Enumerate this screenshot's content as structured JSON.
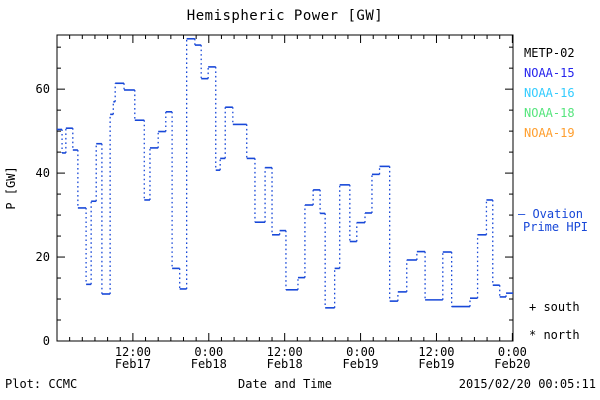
{
  "title": "Hemispheric Power [GW]",
  "footer": {
    "left": "Plot: CCMC",
    "center": "Date and Time",
    "right": "2015/02/20 00:05:11"
  },
  "side_legend": {
    "satellites": [
      {
        "label": "METP-02",
        "color": "#000000"
      },
      {
        "label": "NOAA-15",
        "color": "#2525ee"
      },
      {
        "label": "NOAA-16",
        "color": "#33ccff"
      },
      {
        "label": "NOAA-18",
        "color": "#55e57d"
      },
      {
        "label": "NOAA-19",
        "color": "#ff9f2e"
      }
    ],
    "ovation_line1": "— Ovation",
    "ovation_line2": "Prime HPI",
    "south_marker": "+ south",
    "north_marker": "* north"
  },
  "chart_data": {
    "type": "line",
    "subtype": "step-with-dotted-risers",
    "title": "Hemispheric Power [GW]",
    "xlabel": "Date and Time",
    "ylabel": "P [GW]",
    "line_color": "#1848d8",
    "x_epoch": "2015-02-17 00:00",
    "x_unit": "hours since Feb17 00:00",
    "xlim": [
      0,
      72.1
    ],
    "ylim": [
      0,
      72.9
    ],
    "y_major_ticks": [
      0,
      20,
      40,
      60
    ],
    "y_minor_step": 5,
    "x_minor_step": 2,
    "x_major_ticks": [
      {
        "t": 12,
        "time": "12:00",
        "date": "Feb17"
      },
      {
        "t": 24,
        "time": "0:00",
        "date": "Feb18"
      },
      {
        "t": 36,
        "time": "12:00",
        "date": "Feb18"
      },
      {
        "t": 48,
        "time": "0:00",
        "date": "Feb19"
      },
      {
        "t": 60,
        "time": "12:00",
        "date": "Feb19"
      },
      {
        "t": 72,
        "time": "0:00",
        "date": "Feb20"
      }
    ],
    "grid": false,
    "legend_position": "right-outside",
    "series": [
      {
        "name": "Ovation Prime HPI",
        "color": "#1848d8",
        "points_t_gw": [
          [
            0.0,
            50.4
          ],
          [
            0.8,
            44.8
          ],
          [
            1.4,
            50.7
          ],
          [
            2.5,
            45.5
          ],
          [
            3.3,
            31.7
          ],
          [
            4.6,
            13.5
          ],
          [
            5.4,
            33.3
          ],
          [
            6.2,
            47.0
          ],
          [
            7.1,
            11.2
          ],
          [
            8.4,
            54.0
          ],
          [
            8.9,
            57.0
          ],
          [
            9.2,
            61.4
          ],
          [
            10.6,
            59.8
          ],
          [
            12.3,
            52.6
          ],
          [
            13.8,
            33.6
          ],
          [
            14.7,
            46.0
          ],
          [
            16.0,
            49.9
          ],
          [
            17.2,
            54.6
          ],
          [
            18.2,
            17.3
          ],
          [
            19.4,
            12.4
          ],
          [
            20.5,
            72.0
          ],
          [
            21.8,
            70.5
          ],
          [
            22.8,
            62.5
          ],
          [
            23.9,
            65.3
          ],
          [
            25.1,
            40.7
          ],
          [
            25.8,
            43.5
          ],
          [
            26.6,
            55.7
          ],
          [
            27.8,
            51.6
          ],
          [
            30.0,
            43.5
          ],
          [
            31.3,
            28.3
          ],
          [
            32.9,
            41.3
          ],
          [
            34.0,
            25.3
          ],
          [
            35.2,
            26.3
          ],
          [
            36.2,
            12.2
          ],
          [
            38.1,
            15.1
          ],
          [
            39.2,
            32.4
          ],
          [
            40.5,
            36.0
          ],
          [
            41.6,
            30.4
          ],
          [
            42.4,
            7.9
          ],
          [
            43.9,
            17.3
          ],
          [
            44.7,
            37.2
          ],
          [
            46.3,
            23.7
          ],
          [
            47.4,
            28.2
          ],
          [
            48.7,
            30.5
          ],
          [
            49.8,
            39.7
          ],
          [
            51.0,
            41.6
          ],
          [
            52.6,
            9.5
          ],
          [
            53.9,
            11.7
          ],
          [
            55.3,
            19.3
          ],
          [
            56.9,
            21.3
          ],
          [
            58.2,
            9.8
          ],
          [
            61.0,
            21.2
          ],
          [
            62.4,
            8.2
          ],
          [
            65.3,
            10.2
          ],
          [
            66.5,
            25.3
          ],
          [
            67.9,
            33.6
          ],
          [
            68.9,
            13.3
          ],
          [
            70.0,
            10.5
          ],
          [
            71.0,
            11.4
          ]
        ]
      }
    ]
  }
}
